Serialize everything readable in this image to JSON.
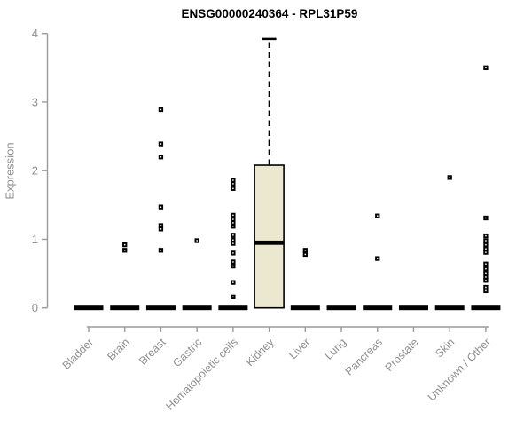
{
  "window": {
    "title": "ENSG00000240364 - RPL31P59"
  },
  "chart_data": {
    "type": "boxplot",
    "title": "ENSG00000240364 - RPL31P59",
    "xlabel": "",
    "ylabel": "Expression",
    "ylim": [
      0,
      4
    ],
    "yticks": [
      0,
      1,
      2,
      3,
      4
    ],
    "grid": false,
    "legend": "none",
    "outlier_shape": "open-square",
    "colors": {
      "box_fill": "#ece8cf",
      "box_stroke": "#000000",
      "median": "#000000",
      "outlier": "#000000",
      "axis_line": "#9a9a9a",
      "axis_text": "#8f8f8f",
      "title_text": "#000000",
      "background": "#ffffff"
    },
    "categories": [
      "Bladder",
      "Brain",
      "Breast",
      "Gastric",
      "Hematopoietic cells",
      "Kidney",
      "Liver",
      "Lung",
      "Pancreas",
      "Prostate",
      "Skin",
      "Unknown / Other"
    ],
    "boxes": [
      {
        "category": "Bladder",
        "q1": 0,
        "median": 0,
        "q3": 0,
        "whisker_low": 0,
        "whisker_high": 0,
        "outliers": []
      },
      {
        "category": "Brain",
        "q1": 0,
        "median": 0,
        "q3": 0,
        "whisker_low": 0,
        "whisker_high": 0,
        "outliers": [
          0.92,
          0.84
        ]
      },
      {
        "category": "Breast",
        "q1": 0,
        "median": 0,
        "q3": 0,
        "whisker_low": 0,
        "whisker_high": 0,
        "outliers": [
          2.89,
          2.39,
          2.2,
          1.47,
          1.2,
          1.15,
          0.84
        ]
      },
      {
        "category": "Gastric",
        "q1": 0,
        "median": 0,
        "q3": 0,
        "whisker_low": 0,
        "whisker_high": 0,
        "outliers": [
          0.98
        ]
      },
      {
        "category": "Hematopoietic cells",
        "q1": 0,
        "median": 0,
        "q3": 0,
        "whisker_low": 0,
        "whisker_high": 0,
        "outliers": [
          1.86,
          1.81,
          1.74,
          1.35,
          1.29,
          1.24,
          1.19,
          1.06,
          0.99,
          0.94,
          0.8,
          0.67,
          0.61,
          0.37,
          0.16
        ]
      },
      {
        "category": "Kidney",
        "q1": 0,
        "median": 0.95,
        "q3": 2.08,
        "whisker_low": 0,
        "whisker_high": 3.92,
        "outliers": []
      },
      {
        "category": "Liver",
        "q1": 0,
        "median": 0,
        "q3": 0,
        "whisker_low": 0,
        "whisker_high": 0,
        "outliers": [
          0.84,
          0.78
        ]
      },
      {
        "category": "Lung",
        "q1": 0,
        "median": 0,
        "q3": 0,
        "whisker_low": 0,
        "whisker_high": 0,
        "outliers": []
      },
      {
        "category": "Pancreas",
        "q1": 0,
        "median": 0,
        "q3": 0,
        "whisker_low": 0,
        "whisker_high": 0,
        "outliers": [
          1.34,
          0.72
        ]
      },
      {
        "category": "Prostate",
        "q1": 0,
        "median": 0,
        "q3": 0,
        "whisker_low": 0,
        "whisker_high": 0,
        "outliers": []
      },
      {
        "category": "Skin",
        "q1": 0,
        "median": 0,
        "q3": 0,
        "whisker_low": 0,
        "whisker_high": 0,
        "outliers": [
          1.9
        ]
      },
      {
        "category": "Unknown / Other",
        "q1": 0,
        "median": 0,
        "q3": 0,
        "whisker_low": 0,
        "whisker_high": 0,
        "outliers": [
          3.5,
          1.31,
          1.05,
          0.98,
          0.92,
          0.86,
          0.81,
          0.64,
          0.57,
          0.51,
          0.45,
          0.4,
          0.3,
          0.25
        ]
      }
    ]
  }
}
